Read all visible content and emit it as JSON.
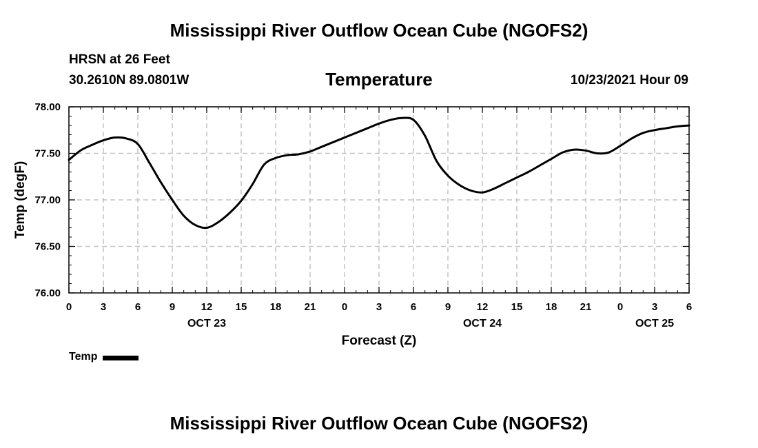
{
  "header": {
    "title": "Mississippi River Outflow Ocean Cube (NGOFS2)",
    "station": "HRSN at 26 Feet",
    "coordinates": "30.2610N  89.0801W",
    "subtitle": "Temperature",
    "datetime": "10/23/2021 Hour 09"
  },
  "footer": {
    "title": "Mississippi River Outflow Ocean Cube (NGOFS2)"
  },
  "chart_data": {
    "type": "line",
    "title": "Temperature",
    "xlabel": "Forecast (Z)",
    "ylabel": "Temp (degF)",
    "ylim": [
      76.0,
      78.0
    ],
    "xlim": [
      0,
      54
    ],
    "grid": true,
    "y_ticks": [
      "76.00",
      "76.50",
      "77.00",
      "77.50",
      "78.00"
    ],
    "y_tick_values": [
      76.0,
      76.5,
      77.0,
      77.5,
      78.0
    ],
    "x_tick_hours": [
      0,
      3,
      6,
      9,
      12,
      15,
      18,
      21,
      24,
      27,
      30,
      33,
      36,
      39,
      42,
      45,
      48,
      51,
      54
    ],
    "x_tick_labels": [
      "0",
      "3",
      "6",
      "9",
      "12",
      "15",
      "18",
      "21",
      "0",
      "3",
      "6",
      "9",
      "12",
      "15",
      "18",
      "21",
      "0",
      "3",
      "6"
    ],
    "date_labels": [
      {
        "hour": 12,
        "label": "OCT 23"
      },
      {
        "hour": 36,
        "label": "OCT 24"
      },
      {
        "hour": 51,
        "label": "OCT 25"
      }
    ],
    "legend": {
      "position": "bottom-left",
      "entries": [
        "Temp"
      ]
    },
    "series": [
      {
        "name": "Temp",
        "x": [
          0,
          1,
          2,
          3,
          4,
          5,
          6,
          7,
          8,
          9,
          10,
          11,
          12,
          13,
          14,
          15,
          16,
          17,
          18,
          19,
          20,
          21,
          22,
          23,
          24,
          25,
          26,
          27,
          28,
          29,
          30,
          31,
          32,
          33,
          34,
          35,
          36,
          37,
          38,
          39,
          40,
          41,
          42,
          43,
          44,
          45,
          46,
          47,
          48,
          49,
          50,
          51,
          52,
          53,
          54
        ],
        "values": [
          77.43,
          77.53,
          77.59,
          77.64,
          77.67,
          77.66,
          77.6,
          77.4,
          77.19,
          77.0,
          76.83,
          76.73,
          76.7,
          76.76,
          76.86,
          76.99,
          77.17,
          77.38,
          77.45,
          77.48,
          77.49,
          77.52,
          77.57,
          77.62,
          77.67,
          77.72,
          77.77,
          77.82,
          77.86,
          77.88,
          77.86,
          77.69,
          77.42,
          77.26,
          77.16,
          77.1,
          77.08,
          77.12,
          77.18,
          77.24,
          77.3,
          77.37,
          77.44,
          77.51,
          77.54,
          77.53,
          77.5,
          77.51,
          77.58,
          77.66,
          77.72,
          77.75,
          77.77,
          77.79,
          77.8
        ]
      }
    ]
  }
}
